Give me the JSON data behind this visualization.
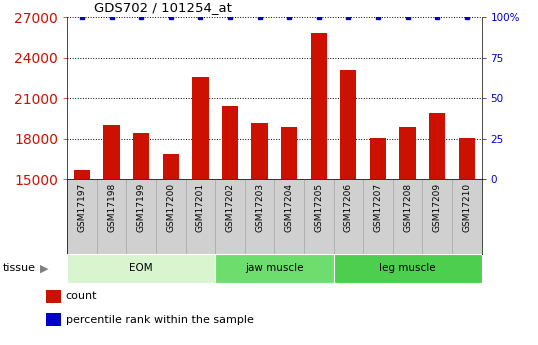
{
  "title": "GDS702 / 101254_at",
  "samples": [
    "GSM17197",
    "GSM17198",
    "GSM17199",
    "GSM17200",
    "GSM17201",
    "GSM17202",
    "GSM17203",
    "GSM17204",
    "GSM17205",
    "GSM17206",
    "GSM17207",
    "GSM17208",
    "GSM17209",
    "GSM17210"
  ],
  "counts": [
    15700,
    19000,
    18400,
    16900,
    22600,
    20400,
    19200,
    18900,
    25800,
    23100,
    18100,
    18900,
    19900,
    18100
  ],
  "percentile": [
    100,
    100,
    100,
    100,
    100,
    100,
    100,
    100,
    100,
    100,
    100,
    100,
    100,
    100
  ],
  "groups": [
    {
      "label": "EOM",
      "start": 0,
      "end": 5,
      "color": "#d8f5d0"
    },
    {
      "label": "jaw muscle",
      "start": 5,
      "end": 9,
      "color": "#6ddd6d"
    },
    {
      "label": "leg muscle",
      "start": 9,
      "end": 14,
      "color": "#4ec94e"
    }
  ],
  "bar_color": "#cc1100",
  "dot_color": "#0000cc",
  "ylim_left": [
    15000,
    27000
  ],
  "ylim_right": [
    0,
    100
  ],
  "yticks_left": [
    15000,
    18000,
    21000,
    24000,
    27000
  ],
  "yticks_right": [
    0,
    25,
    50,
    75,
    100
  ],
  "grid_lines": [
    18000,
    21000,
    24000,
    27000
  ],
  "tick_color_left": "#cc1100",
  "tick_color_right": "#0000cc",
  "figsize": [
    5.38,
    3.45
  ],
  "dpi": 100
}
